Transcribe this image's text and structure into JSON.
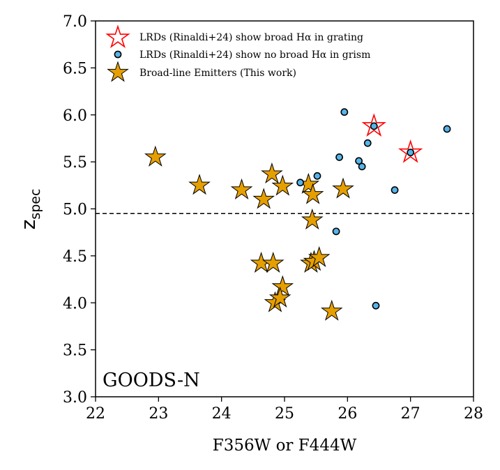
{
  "chart_data": {
    "type": "scatter",
    "title": "",
    "xlabel": "F356W or F444W",
    "ylabel": {
      "main": "z",
      "sub": "spec"
    },
    "xlim": [
      22,
      28
    ],
    "ylim": [
      3.0,
      7.0
    ],
    "xticks": [
      "22",
      "23",
      "24",
      "25",
      "26",
      "27",
      "28"
    ],
    "yticks": [
      "3.0",
      "3.5",
      "4.0",
      "4.5",
      "5.0",
      "5.5",
      "6.0",
      "6.5",
      "7.0"
    ],
    "grid": false,
    "legend_position": "top-left",
    "reference_line": {
      "y": 4.95,
      "style": "dashed"
    },
    "annotation": "GOODS-N",
    "series": [
      {
        "name": "LRDs (Rinaldi+24) show broad Hα in grating",
        "marker": "star-open",
        "color": "#ff0000",
        "points": [
          [
            26.42,
            5.88
          ],
          [
            27.0,
            5.6
          ]
        ]
      },
      {
        "name": "LRDs (Rinaldi+24) show no broad Hα in grism",
        "marker": "circle",
        "color": "#56b4e9",
        "points": [
          [
            25.95,
            6.03
          ],
          [
            27.58,
            5.85
          ],
          [
            26.42,
            5.88
          ],
          [
            26.32,
            5.7
          ],
          [
            25.87,
            5.55
          ],
          [
            26.18,
            5.51
          ],
          [
            26.23,
            5.45
          ],
          [
            27.0,
            5.6
          ],
          [
            25.52,
            5.35
          ],
          [
            25.25,
            5.28
          ],
          [
            26.75,
            5.2
          ],
          [
            25.82,
            4.76
          ],
          [
            26.45,
            3.97
          ]
        ]
      },
      {
        "name": "Broad-line Emitters (This work)",
        "marker": "star",
        "color": "#e69f00",
        "points": [
          [
            22.95,
            5.55
          ],
          [
            23.65,
            5.25
          ],
          [
            24.32,
            5.2
          ],
          [
            24.67,
            5.1
          ],
          [
            24.8,
            5.37
          ],
          [
            24.97,
            5.24
          ],
          [
            25.38,
            5.26
          ],
          [
            25.45,
            5.15
          ],
          [
            25.93,
            5.21
          ],
          [
            25.44,
            4.88
          ],
          [
            24.63,
            4.42
          ],
          [
            24.82,
            4.42
          ],
          [
            25.42,
            4.42
          ],
          [
            25.47,
            4.44
          ],
          [
            25.55,
            4.48
          ],
          [
            24.97,
            4.17
          ],
          [
            24.85,
            4.0
          ],
          [
            24.93,
            4.05
          ],
          [
            25.75,
            3.91
          ]
        ]
      }
    ]
  }
}
